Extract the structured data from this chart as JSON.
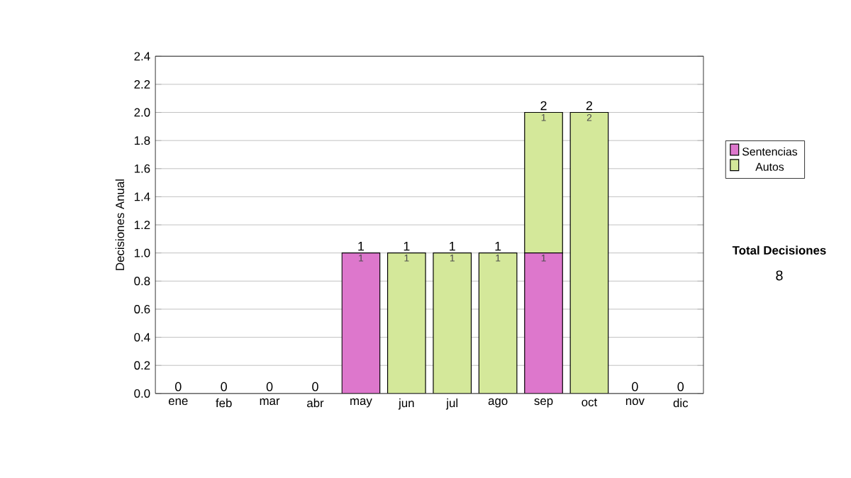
{
  "chart_data": {
    "type": "bar",
    "stacked": true,
    "ylabel": "Decisiones Anual",
    "categories": [
      "ene",
      "feb",
      "mar",
      "abr",
      "may",
      "jun",
      "jul",
      "ago",
      "sep",
      "oct",
      "nov",
      "dic"
    ],
    "series": [
      {
        "name": "Sentencias",
        "color": "#dd77cc",
        "values": [
          0,
          0,
          0,
          0,
          1,
          0,
          0,
          0,
          1,
          0,
          0,
          0
        ],
        "value_labels": [
          null,
          null,
          null,
          null,
          "1",
          null,
          null,
          null,
          "1",
          null,
          null,
          null
        ]
      },
      {
        "name": "Autos",
        "color": "#d4e89a",
        "values": [
          0,
          0,
          0,
          0,
          0,
          1,
          1,
          1,
          1,
          2,
          0,
          0
        ],
        "value_labels": [
          null,
          null,
          null,
          null,
          null,
          "1",
          "1",
          "1",
          "1",
          "2",
          null,
          null
        ]
      }
    ],
    "totals": [
      "0",
      "0",
      "0",
      "0",
      "1",
      "1",
      "1",
      "1",
      "2",
      "2",
      "0",
      "0"
    ],
    "ylim": [
      0,
      2.4
    ],
    "yticks": [
      {
        "value": 0,
        "label": "0.0"
      },
      {
        "value": 0.2,
        "label": "0.2"
      },
      {
        "value": 0.4,
        "label": "0.4"
      },
      {
        "value": 0.6,
        "label": "0.6"
      },
      {
        "value": 0.8,
        "label": "0.8"
      },
      {
        "value": 1,
        "label": "1.0"
      },
      {
        "value": 1.2,
        "label": "1.2"
      },
      {
        "value": 1.4,
        "label": "1.4"
      },
      {
        "value": 1.6,
        "label": "1.6"
      },
      {
        "value": 1.8,
        "label": "1.8"
      },
      {
        "value": 2,
        "label": "2.0"
      },
      {
        "value": 2.2,
        "label": "2.2"
      },
      {
        "value": 2.4,
        "label": "2.4"
      }
    ],
    "grid": "y",
    "legend": "right",
    "annotations": [
      "Total Decisiones",
      "8"
    ]
  }
}
